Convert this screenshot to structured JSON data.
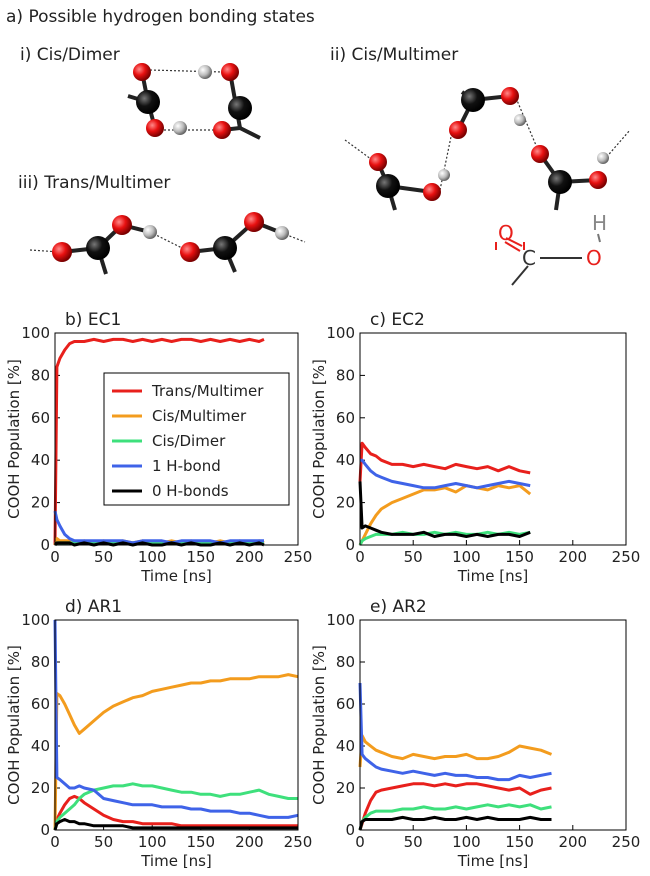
{
  "diagram": {
    "title": "a) Possible hydrogen bonding states",
    "panels": [
      "i) Cis/Dimer",
      "ii) Cis/Multimer",
      "iii) Trans/Multimer"
    ],
    "cooh_atoms": [
      "O",
      "H",
      "C",
      "O"
    ]
  },
  "chart_data": [
    {
      "type": "line",
      "title": "b) EC1",
      "xlabel": "Time [ns]",
      "ylabel": "COOH Population [%]",
      "xlim": [
        0,
        250
      ],
      "ylim": [
        0,
        100
      ],
      "xticks": [
        0,
        50,
        100,
        150,
        200,
        250
      ],
      "yticks": [
        0,
        20,
        40,
        60,
        80,
        100
      ],
      "legend": "center",
      "x": [
        0,
        2,
        5,
        10,
        15,
        20,
        30,
        40,
        50,
        60,
        70,
        80,
        90,
        100,
        110,
        120,
        130,
        140,
        150,
        160,
        170,
        180,
        190,
        200,
        210,
        215
      ],
      "series": [
        {
          "name": "Trans/Multimer",
          "color": "#e8201c",
          "values": [
            0,
            84,
            88,
            92,
            95,
            96,
            96,
            97,
            96,
            97,
            97,
            96,
            97,
            96,
            97,
            96,
            97,
            97,
            96,
            97,
            96,
            97,
            96,
            97,
            96,
            97
          ]
        },
        {
          "name": "Cis/Multimer",
          "color": "#f39c1e",
          "values": [
            0,
            3,
            2,
            2,
            2,
            1,
            2,
            1,
            2,
            1,
            2,
            1,
            2,
            1,
            1,
            2,
            1,
            2,
            1,
            1,
            2,
            1,
            2,
            1,
            2,
            1
          ]
        },
        {
          "name": "Cis/Dimer",
          "color": "#3ee07c",
          "values": [
            0,
            1,
            1,
            1,
            1,
            1,
            1,
            1,
            1,
            1,
            1,
            1,
            1,
            1,
            1,
            1,
            1,
            1,
            1,
            1,
            1,
            1,
            1,
            1,
            1,
            1
          ]
        },
        {
          "name": "1 H-bond",
          "color": "#3f63e8",
          "values": [
            16,
            12,
            9,
            5,
            3,
            2,
            2,
            2,
            2,
            2,
            2,
            1,
            2,
            2,
            2,
            1,
            2,
            2,
            2,
            2,
            1,
            2,
            2,
            2,
            2,
            2
          ]
        },
        {
          "name": "0 H-bonds",
          "color": "#000000",
          "values": [
            0,
            1,
            1,
            1,
            1,
            0,
            1,
            0,
            1,
            0,
            1,
            0,
            1,
            0,
            0,
            1,
            0,
            1,
            0,
            0,
            1,
            0,
            1,
            0,
            1,
            0
          ]
        }
      ]
    },
    {
      "type": "line",
      "title": "c) EC2",
      "xlabel": "Time [ns]",
      "ylabel": "COOH Population [%]",
      "xlim": [
        0,
        250
      ],
      "ylim": [
        0,
        100
      ],
      "xticks": [
        0,
        50,
        100,
        150,
        200,
        250
      ],
      "yticks": [
        0,
        20,
        40,
        60,
        80,
        100
      ],
      "x": [
        0,
        2,
        5,
        10,
        15,
        20,
        30,
        40,
        50,
        60,
        70,
        80,
        90,
        100,
        110,
        120,
        130,
        140,
        150,
        160
      ],
      "series": [
        {
          "color": "#e8201c",
          "values": [
            30,
            48,
            46,
            43,
            42,
            40,
            38,
            38,
            37,
            38,
            37,
            36,
            38,
            37,
            36,
            37,
            35,
            37,
            35,
            34
          ]
        },
        {
          "color": "#f39c1e",
          "values": [
            0,
            2,
            5,
            10,
            14,
            17,
            20,
            22,
            24,
            26,
            26,
            27,
            25,
            28,
            27,
            26,
            28,
            27,
            28,
            24
          ]
        },
        {
          "color": "#3ee07c",
          "values": [
            0,
            2,
            3,
            4,
            5,
            5,
            5,
            6,
            5,
            5,
            6,
            5,
            6,
            5,
            5,
            6,
            5,
            6,
            5,
            6
          ]
        },
        {
          "color": "#3f63e8",
          "values": [
            40,
            40,
            38,
            35,
            33,
            32,
            30,
            29,
            28,
            27,
            27,
            28,
            29,
            28,
            27,
            28,
            29,
            30,
            29,
            28
          ]
        },
        {
          "color": "#000000",
          "values": [
            30,
            8,
            9,
            8,
            7,
            6,
            5,
            5,
            5,
            6,
            4,
            5,
            5,
            4,
            5,
            4,
            5,
            5,
            4,
            6
          ]
        }
      ]
    },
    {
      "type": "line",
      "title": "d) AR1",
      "xlabel": "Time [ns]",
      "ylabel": "COOH Population [%]",
      "xlim": [
        0,
        250
      ],
      "ylim": [
        0,
        100
      ],
      "xticks": [
        0,
        50,
        100,
        150,
        200,
        250
      ],
      "yticks": [
        0,
        20,
        40,
        60,
        80,
        100
      ],
      "x": [
        0,
        2,
        5,
        10,
        15,
        20,
        25,
        30,
        40,
        50,
        60,
        70,
        80,
        90,
        100,
        110,
        120,
        130,
        140,
        150,
        160,
        170,
        180,
        190,
        200,
        210,
        220,
        230,
        240,
        250
      ],
      "series": [
        {
          "color": "#e8201c",
          "values": [
            0,
            5,
            8,
            12,
            15,
            16,
            15,
            13,
            10,
            7,
            5,
            4,
            4,
            3,
            3,
            3,
            3,
            2,
            2,
            2,
            2,
            2,
            2,
            2,
            2,
            2,
            2,
            2,
            2,
            2
          ]
        },
        {
          "color": "#f39c1e",
          "values": [
            0,
            65,
            64,
            60,
            55,
            50,
            46,
            48,
            52,
            56,
            59,
            61,
            63,
            64,
            66,
            67,
            68,
            69,
            70,
            70,
            71,
            71,
            72,
            72,
            72,
            73,
            73,
            73,
            74,
            73
          ]
        },
        {
          "color": "#3ee07c",
          "values": [
            0,
            4,
            6,
            8,
            10,
            12,
            15,
            17,
            19,
            20,
            21,
            21,
            22,
            21,
            21,
            20,
            19,
            18,
            18,
            17,
            17,
            16,
            17,
            17,
            18,
            19,
            17,
            16,
            15,
            15
          ]
        },
        {
          "color": "#3f63e8",
          "values": [
            100,
            25,
            24,
            22,
            20,
            20,
            21,
            20,
            19,
            15,
            14,
            13,
            12,
            12,
            12,
            11,
            11,
            11,
            10,
            10,
            9,
            9,
            9,
            8,
            8,
            7,
            6,
            6,
            6,
            7
          ]
        },
        {
          "color": "#000000",
          "values": [
            0,
            3,
            4,
            5,
            4,
            4,
            3,
            3,
            2,
            2,
            2,
            2,
            1,
            1,
            1,
            1,
            1,
            1,
            1,
            1,
            1,
            1,
            1,
            1,
            1,
            1,
            1,
            1,
            1,
            1
          ]
        }
      ]
    },
    {
      "type": "line",
      "title": "e) AR2",
      "xlabel": "Time [ns]",
      "ylabel": "COOH Population [%]",
      "xlim": [
        0,
        250
      ],
      "ylim": [
        0,
        100
      ],
      "xticks": [
        0,
        50,
        100,
        150,
        200,
        250
      ],
      "yticks": [
        0,
        20,
        40,
        60,
        80,
        100
      ],
      "x": [
        0,
        2,
        5,
        10,
        15,
        20,
        30,
        40,
        50,
        60,
        70,
        80,
        90,
        100,
        110,
        120,
        130,
        140,
        150,
        160,
        170,
        180
      ],
      "series": [
        {
          "color": "#e8201c",
          "values": [
            0,
            3,
            8,
            14,
            18,
            19,
            20,
            21,
            22,
            22,
            21,
            22,
            21,
            22,
            22,
            21,
            20,
            19,
            20,
            17,
            19,
            20
          ]
        },
        {
          "color": "#f39c1e",
          "values": [
            30,
            45,
            42,
            40,
            38,
            37,
            35,
            34,
            36,
            35,
            34,
            35,
            35,
            36,
            34,
            34,
            35,
            37,
            40,
            39,
            38,
            36
          ]
        },
        {
          "color": "#3ee07c",
          "values": [
            0,
            4,
            6,
            8,
            9,
            9,
            9,
            10,
            10,
            11,
            10,
            10,
            11,
            10,
            11,
            12,
            11,
            12,
            11,
            12,
            10,
            11
          ]
        },
        {
          "color": "#3f63e8",
          "values": [
            70,
            36,
            34,
            32,
            30,
            29,
            28,
            27,
            28,
            27,
            26,
            27,
            26,
            26,
            25,
            25,
            24,
            24,
            26,
            25,
            26,
            27
          ]
        },
        {
          "color": "#000000",
          "values": [
            0,
            4,
            5,
            5,
            5,
            5,
            5,
            6,
            5,
            5,
            6,
            5,
            5,
            6,
            5,
            6,
            5,
            5,
            5,
            6,
            5,
            5
          ]
        }
      ]
    }
  ]
}
